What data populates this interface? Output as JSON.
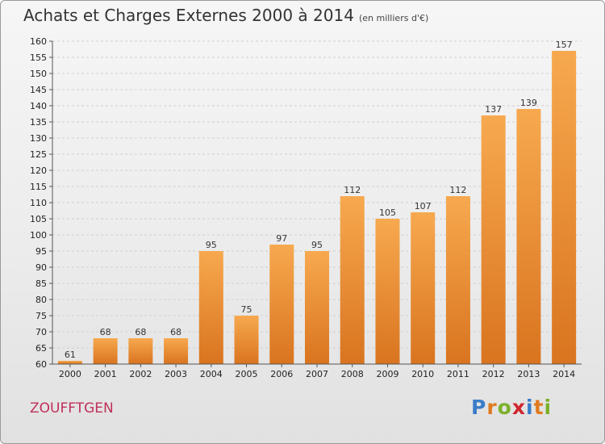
{
  "header": {
    "title": "Achats et Charges Externes 2000 à 2014",
    "unit": "(en milliers d'€)"
  },
  "footer": {
    "commune": "ZOUFFTGEN",
    "logo": "Proxiti",
    "logo_colors": [
      "#3a7dc9",
      "#e07b1f",
      "#7bb02a",
      "#d0262e",
      "#3a7dc9",
      "#e07b1f",
      "#7bb02a"
    ]
  },
  "chart_data": {
    "type": "bar",
    "title": "Achats et Charges Externes 2000 à 2014",
    "subtitle": "(en milliers d'€)",
    "categories": [
      "2000",
      "2001",
      "2002",
      "2003",
      "2004",
      "2005",
      "2006",
      "2007",
      "2008",
      "2009",
      "2010",
      "2011",
      "2012",
      "2013",
      "2014"
    ],
    "values": [
      61,
      68,
      68,
      68,
      95,
      75,
      97,
      95,
      112,
      105,
      107,
      112,
      137,
      139,
      157
    ],
    "ylim": [
      60,
      160
    ],
    "yticks": [
      60,
      65,
      70,
      75,
      80,
      85,
      90,
      95,
      100,
      105,
      110,
      115,
      120,
      125,
      130,
      135,
      140,
      145,
      150,
      155,
      160
    ],
    "grid": true,
    "colors": {
      "bar_top": "#f7a94f",
      "bar_bottom": "#d9741f",
      "grid": "#cfcfcf",
      "axis": "#555555"
    }
  }
}
